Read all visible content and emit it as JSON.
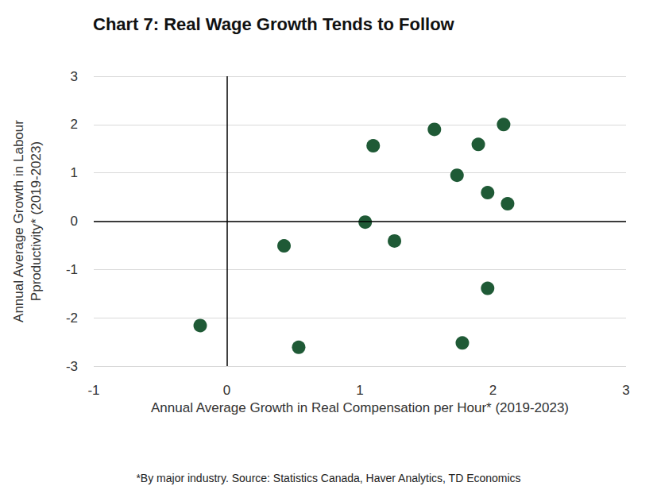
{
  "chart_data": {
    "type": "scatter",
    "title": "Chart 7: Real Wage Growth Tends to Follow",
    "x_label": "Annual Average Growth in Real Compensation per Hour* (2019-2023)",
    "y_label": "Annual Average Growth in Labour\nPproductivity* (2019-2023)",
    "footnote": "*By major industry. Source: Statistics Canada, Haver Analytics, TD Economics",
    "x": [
      -0.2,
      0.43,
      0.54,
      1.04,
      1.1,
      1.26,
      1.56,
      1.73,
      1.77,
      1.89,
      1.96,
      1.96,
      2.08,
      2.11
    ],
    "values": [
      -2.16,
      -0.51,
      -2.61,
      -0.02,
      1.56,
      -0.41,
      1.9,
      0.95,
      -2.52,
      1.59,
      0.59,
      -1.39,
      2.0,
      0.36
    ],
    "color": "#1f5a36",
    "marker": "circle",
    "xlim": [
      -1,
      3
    ],
    "xticks": [
      -1,
      0,
      1,
      2,
      3
    ],
    "ylim": [
      -3,
      3
    ],
    "yticks": [
      -3,
      -2,
      -1,
      0,
      1,
      2,
      3
    ],
    "grid": true
  }
}
